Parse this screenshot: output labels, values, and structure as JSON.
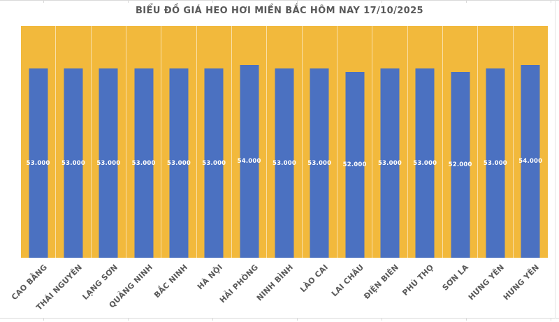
{
  "chart_data": {
    "type": "bar",
    "title": "BIỂU ĐỒ GIÁ HEO HƠI MIỀN BẮC HÔM NAY 17/10/2025",
    "categories": [
      "CAO BẰNG",
      "THÁI NGUYÊN",
      "LẠNG SƠN",
      "QUẢNG NINH",
      "BẮC NINH",
      "HÀ NỘI",
      "HẢI PHÒNG",
      "NINH BÌNH",
      "LÀO CAI",
      "LAI CHÂU",
      "ĐIỆN BIÊN",
      "PHÚ THỌ",
      "SƠN LA",
      "HƯNG YÊN",
      "HƯNG YÊN"
    ],
    "values": [
      53000,
      53000,
      53000,
      53000,
      53000,
      53000,
      54000,
      53000,
      53000,
      52000,
      53000,
      53000,
      52000,
      53000,
      54000
    ],
    "data_labels": [
      "53.000",
      "53.000",
      "53.000",
      "53.000",
      "53.000",
      "53.000",
      "54.000",
      "53.000",
      "53.000",
      "52.000",
      "53.000",
      "53.000",
      "52.000",
      "53.000",
      "54.000"
    ],
    "xlabel": "",
    "ylabel": "",
    "ylim": [
      0,
      65000
    ],
    "legend": "none",
    "grid": "vertical category separators only",
    "data_label_position": "inside-center",
    "colors": {
      "plot_background": "#F2B93C",
      "bar_fill": "#4B71C1",
      "data_label_text": "#FFFFFF",
      "title_text": "#595959",
      "axis_label_text": "#595959",
      "category_separator": "rgba(255,255,255,0.55)",
      "spreadsheet_gridline": "#D9D9D9"
    }
  }
}
